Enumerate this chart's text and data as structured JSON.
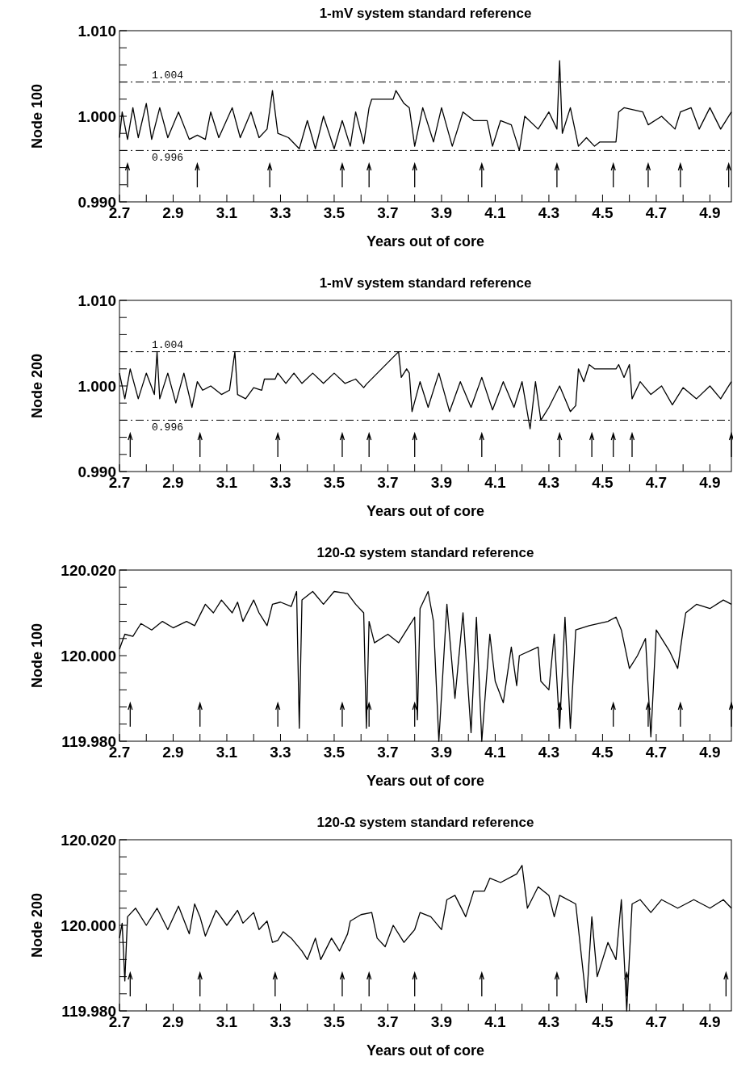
{
  "chart_data": [
    {
      "type": "line",
      "title": "1-mV system standard reference",
      "xlabel": "Years out of core",
      "ylabel": "Node 100",
      "xlim": [
        2.7,
        4.98
      ],
      "xticks": [
        2.7,
        {
          "value": 2.8,
          "label": null
        },
        2.9,
        {
          "value": 3.0,
          "label": null
        },
        3.1,
        {
          "value": 3.2,
          "label": null
        },
        3.3,
        {
          "value": 3.4,
          "label": null
        },
        3.5,
        {
          "value": 3.6,
          "label": null
        },
        3.7,
        {
          "value": 3.8,
          "label": null
        },
        3.9,
        {
          "value": 4.0,
          "label": null
        },
        4.1,
        {
          "value": 4.2,
          "label": null
        },
        4.3,
        {
          "value": 4.4,
          "label": null
        },
        4.5,
        {
          "value": 4.6,
          "label": null
        },
        4.7,
        {
          "value": 4.8,
          "label": null
        },
        4.9
      ],
      "ylim": [
        0.99,
        1.01
      ],
      "yticks": [
        {
          "value": 0.99,
          "label": "0.990"
        },
        {
          "value": 0.992,
          "label": null
        },
        {
          "value": 0.994,
          "label": null
        },
        {
          "value": 0.996,
          "label": null
        },
        {
          "value": 0.998,
          "label": null
        },
        {
          "value": 1.0,
          "label": "1.000"
        },
        {
          "value": 1.002,
          "label": null
        },
        {
          "value": 1.004,
          "label": null
        },
        {
          "value": 1.006,
          "label": null
        },
        {
          "value": 1.008,
          "label": null
        },
        {
          "value": 1.01,
          "label": "1.010"
        }
      ],
      "ref_lines": [
        {
          "axis": "y",
          "value": 1.004,
          "label": "1.004",
          "line_style": "dashed"
        },
        {
          "axis": "y",
          "value": 0.996,
          "label": "0.996",
          "line_style": "dashed"
        },
        {
          "axis": "x",
          "value": 2.73
        },
        {
          "axis": "x",
          "value": 2.99
        },
        {
          "axis": "x",
          "value": 3.26
        },
        {
          "axis": "x",
          "value": 3.53
        },
        {
          "axis": "x",
          "value": 3.63
        },
        {
          "axis": "x",
          "value": 3.8
        },
        {
          "axis": "x",
          "value": 4.05
        },
        {
          "axis": "x",
          "value": 4.33
        },
        {
          "axis": "x",
          "value": 4.54
        },
        {
          "axis": "x",
          "value": 4.67
        },
        {
          "axis": "x",
          "value": 4.79
        },
        {
          "axis": "x",
          "value": 4.97
        }
      ],
      "series": [
        {
          "color": "#000000",
          "x": [
            2.7,
            2.71,
            2.73,
            2.75,
            2.77,
            2.8,
            2.82,
            2.85,
            2.88,
            2.92,
            2.96,
            2.99,
            3.02,
            3.04,
            3.07,
            3.12,
            3.15,
            3.19,
            3.22,
            3.25,
            3.27,
            3.29,
            3.33,
            3.37,
            3.4,
            3.43,
            3.46,
            3.5,
            3.53,
            3.56,
            3.58,
            3.61,
            3.63,
            3.64,
            3.72,
            3.73,
            3.76,
            3.78,
            3.8,
            3.83,
            3.87,
            3.9,
            3.94,
            3.98,
            4.02,
            4.07,
            4.09,
            4.12,
            4.16,
            4.19,
            4.21,
            4.26,
            4.3,
            4.33,
            4.34,
            4.35,
            4.38,
            4.41,
            4.44,
            4.47,
            4.49,
            4.55,
            4.56,
            4.58,
            4.65,
            4.67,
            4.72,
            4.77,
            4.79,
            4.83,
            4.86,
            4.9,
            4.94,
            4.98
          ],
          "values": [
            0.9975,
            1.0005,
            0.9973,
            1.001,
            0.9975,
            1.0015,
            0.9973,
            1.001,
            0.9975,
            1.0005,
            0.9973,
            0.9978,
            0.9973,
            1.0005,
            0.9975,
            1.001,
            0.9975,
            1.0005,
            0.9975,
            0.9985,
            1.003,
            0.998,
            0.9975,
            0.9962,
            0.9995,
            0.9962,
            1.0,
            0.9962,
            0.9995,
            0.9965,
            1.0005,
            0.9968,
            1.001,
            1.002,
            1.002,
            1.003,
            1.0015,
            1.001,
            0.9965,
            1.001,
            0.997,
            1.001,
            0.9965,
            1.0005,
            0.9995,
            0.9995,
            0.9965,
            0.9995,
            0.999,
            0.996,
            1.0,
            0.9985,
            1.0005,
            0.9985,
            1.0065,
            0.998,
            1.001,
            0.9965,
            0.9975,
            0.9965,
            0.997,
            0.997,
            1.0005,
            1.001,
            1.0005,
            0.999,
            1.0,
            0.9985,
            1.0005,
            1.001,
            0.9985,
            1.001,
            0.9985,
            1.0005
          ]
        }
      ]
    },
    {
      "type": "line",
      "title": "1-mV system standard reference",
      "xlabel": "Years out of core",
      "ylabel": "Node 200",
      "xlim": [
        2.7,
        4.98
      ],
      "xticks": [
        2.7,
        {
          "value": 2.8,
          "label": null
        },
        2.9,
        {
          "value": 3.0,
          "label": null
        },
        3.1,
        {
          "value": 3.2,
          "label": null
        },
        3.3,
        {
          "value": 3.4,
          "label": null
        },
        3.5,
        {
          "value": 3.6,
          "label": null
        },
        3.7,
        {
          "value": 3.8,
          "label": null
        },
        3.9,
        {
          "value": 4.0,
          "label": null
        },
        4.1,
        {
          "value": 4.2,
          "label": null
        },
        4.3,
        {
          "value": 4.4,
          "label": null
        },
        4.5,
        {
          "value": 4.6,
          "label": null
        },
        4.7,
        {
          "value": 4.8,
          "label": null
        },
        4.9
      ],
      "ylim": [
        0.99,
        1.01
      ],
      "yticks": [
        {
          "value": 0.99,
          "label": "0.990"
        },
        {
          "value": 0.992,
          "label": null
        },
        {
          "value": 0.994,
          "label": null
        },
        {
          "value": 0.996,
          "label": null
        },
        {
          "value": 0.998,
          "label": null
        },
        {
          "value": 1.0,
          "label": "1.000"
        },
        {
          "value": 1.002,
          "label": null
        },
        {
          "value": 1.004,
          "label": null
        },
        {
          "value": 1.006,
          "label": null
        },
        {
          "value": 1.008,
          "label": null
        },
        {
          "value": 1.01,
          "label": "1.010"
        }
      ],
      "ref_lines": [
        {
          "axis": "y",
          "value": 1.004,
          "label": "1.004",
          "line_style": "dashed"
        },
        {
          "axis": "y",
          "value": 0.996,
          "label": "0.996",
          "line_style": "dashed"
        },
        {
          "axis": "x",
          "value": 2.74
        },
        {
          "axis": "x",
          "value": 3.0
        },
        {
          "axis": "x",
          "value": 3.29
        },
        {
          "axis": "x",
          "value": 3.53
        },
        {
          "axis": "x",
          "value": 3.63
        },
        {
          "axis": "x",
          "value": 3.8
        },
        {
          "axis": "x",
          "value": 4.05
        },
        {
          "axis": "x",
          "value": 4.34
        },
        {
          "axis": "x",
          "value": 4.46
        },
        {
          "axis": "x",
          "value": 4.54
        },
        {
          "axis": "x",
          "value": 4.61
        },
        {
          "axis": "x",
          "value": 4.98
        }
      ],
      "series": [
        {
          "color": "#000000",
          "x": [
            2.7,
            2.72,
            2.74,
            2.77,
            2.8,
            2.83,
            2.84,
            2.85,
            2.88,
            2.91,
            2.94,
            2.97,
            2.99,
            3.01,
            3.04,
            3.08,
            3.11,
            3.13,
            3.14,
            3.17,
            3.2,
            3.23,
            3.24,
            3.28,
            3.29,
            3.32,
            3.35,
            3.38,
            3.42,
            3.46,
            3.5,
            3.54,
            3.58,
            3.61,
            3.62,
            3.74,
            3.75,
            3.77,
            3.78,
            3.79,
            3.82,
            3.85,
            3.89,
            3.93,
            3.97,
            4.01,
            4.05,
            4.09,
            4.13,
            4.17,
            4.2,
            4.23,
            4.25,
            4.27,
            4.3,
            4.34,
            4.38,
            4.4,
            4.41,
            4.43,
            4.45,
            4.47,
            4.55,
            4.56,
            4.58,
            4.6,
            4.61,
            4.64,
            4.68,
            4.72,
            4.76,
            4.8,
            4.85,
            4.9,
            4.94,
            4.98
          ],
          "values": [
            1.0015,
            0.9985,
            1.002,
            0.9985,
            1.0015,
            0.999,
            1.004,
            0.9985,
            1.0015,
            0.998,
            1.0015,
            0.9975,
            1.0005,
            0.9995,
            1.0,
            0.999,
            0.9995,
            1.004,
            0.999,
            0.9985,
            0.9998,
            0.9995,
            1.0008,
            1.0008,
            1.0015,
            1.0003,
            1.0015,
            1.0003,
            1.0015,
            1.0003,
            1.0015,
            1.0003,
            1.0008,
            0.9998,
            1.0002,
            1.004,
            1.001,
            1.002,
            1.0015,
            0.997,
            1.0005,
            0.9975,
            1.0015,
            0.997,
            1.0005,
            0.9975,
            1.001,
            0.9972,
            1.0005,
            0.9975,
            1.0005,
            0.995,
            1.0005,
            0.996,
            0.9975,
            1.0,
            0.997,
            0.9977,
            1.002,
            1.0005,
            1.0025,
            1.002,
            1.002,
            1.0025,
            1.001,
            1.0025,
            0.9985,
            1.0005,
            0.999,
            1.0,
            0.9978,
            0.9998,
            0.9985,
            1.0,
            0.9985,
            1.0005
          ]
        }
      ]
    },
    {
      "type": "line",
      "title": "120-Ω system standard reference",
      "xlabel": "Years out of core",
      "ylabel": "Node 100",
      "xlim": [
        2.7,
        4.98
      ],
      "xticks": [
        2.7,
        {
          "value": 2.8,
          "label": null
        },
        2.9,
        {
          "value": 3.0,
          "label": null
        },
        3.1,
        {
          "value": 3.2,
          "label": null
        },
        3.3,
        {
          "value": 3.4,
          "label": null
        },
        3.5,
        {
          "value": 3.6,
          "label": null
        },
        3.7,
        {
          "value": 3.8,
          "label": null
        },
        3.9,
        {
          "value": 4.0,
          "label": null
        },
        4.1,
        {
          "value": 4.2,
          "label": null
        },
        4.3,
        {
          "value": 4.4,
          "label": null
        },
        4.5,
        {
          "value": 4.6,
          "label": null
        },
        4.7,
        {
          "value": 4.8,
          "label": null
        },
        4.9
      ],
      "ylim": [
        119.98,
        120.02
      ],
      "yticks": [
        {
          "value": 119.98,
          "label": "119.980"
        },
        {
          "value": 119.984,
          "label": null
        },
        {
          "value": 119.988,
          "label": null
        },
        {
          "value": 119.992,
          "label": null
        },
        {
          "value": 119.996,
          "label": null
        },
        {
          "value": 120.0,
          "label": "120.000"
        },
        {
          "value": 120.004,
          "label": null
        },
        {
          "value": 120.008,
          "label": null
        },
        {
          "value": 120.012,
          "label": null
        },
        {
          "value": 120.016,
          "label": null
        },
        {
          "value": 120.02,
          "label": "120.020"
        }
      ],
      "ref_lines": [
        {
          "axis": "x",
          "value": 2.74
        },
        {
          "axis": "x",
          "value": 3.0
        },
        {
          "axis": "x",
          "value": 3.29
        },
        {
          "axis": "x",
          "value": 3.53
        },
        {
          "axis": "x",
          "value": 3.63
        },
        {
          "axis": "x",
          "value": 3.8
        },
        {
          "axis": "x",
          "value": 4.34
        },
        {
          "axis": "x",
          "value": 4.54
        },
        {
          "axis": "x",
          "value": 4.67
        },
        {
          "axis": "x",
          "value": 4.79
        },
        {
          "axis": "x",
          "value": 4.98
        }
      ],
      "series": [
        {
          "color": "#000000",
          "x": [
            2.7,
            2.72,
            2.75,
            2.78,
            2.82,
            2.86,
            2.9,
            2.95,
            2.98,
            3.0,
            3.02,
            3.05,
            3.08,
            3.12,
            3.14,
            3.16,
            3.2,
            3.22,
            3.25,
            3.27,
            3.3,
            3.34,
            3.36,
            3.37,
            3.38,
            3.42,
            3.46,
            3.5,
            3.55,
            3.58,
            3.61,
            3.62,
            3.63,
            3.65,
            3.7,
            3.74,
            3.78,
            3.8,
            3.81,
            3.82,
            3.85,
            3.87,
            3.89,
            3.92,
            3.95,
            3.98,
            4.01,
            4.03,
            4.05,
            4.08,
            4.1,
            4.13,
            4.16,
            4.18,
            4.19,
            4.26,
            4.27,
            4.3,
            4.32,
            4.34,
            4.36,
            4.38,
            4.4,
            4.45,
            4.52,
            4.55,
            4.57,
            4.6,
            4.63,
            4.66,
            4.68,
            4.7,
            4.75,
            4.78,
            4.8,
            4.81,
            4.85,
            4.9,
            4.95,
            4.98
          ],
          "values": [
            120.0015,
            120.005,
            120.0045,
            120.0075,
            120.006,
            120.008,
            120.0065,
            120.008,
            120.007,
            120.0095,
            120.012,
            120.01,
            120.013,
            120.01,
            120.0125,
            120.008,
            120.013,
            120.01,
            120.007,
            120.012,
            120.0125,
            120.0115,
            120.015,
            119.983,
            120.013,
            120.015,
            120.012,
            120.015,
            120.0145,
            120.012,
            120.01,
            119.983,
            120.008,
            120.003,
            120.005,
            120.003,
            120.007,
            120.009,
            119.985,
            120.011,
            120.015,
            120.008,
            119.98,
            120.012,
            119.99,
            120.01,
            119.982,
            120.009,
            119.98,
            120.005,
            119.994,
            119.989,
            120.002,
            119.993,
            120.0,
            120.002,
            119.994,
            119.992,
            120.005,
            119.983,
            120.009,
            119.983,
            120.006,
            120.007,
            120.008,
            120.009,
            120.006,
            119.997,
            120.0,
            120.004,
            119.981,
            120.006,
            120.001,
            119.997,
            120.006,
            120.01,
            120.012,
            120.011,
            120.013,
            120.012
          ]
        }
      ]
    },
    {
      "type": "line",
      "title": "120-Ω system standard reference",
      "xlabel": "Years out of core",
      "ylabel": "Node 200",
      "xlim": [
        2.7,
        4.98
      ],
      "xticks": [
        2.7,
        {
          "value": 2.8,
          "label": null
        },
        2.9,
        {
          "value": 3.0,
          "label": null
        },
        3.1,
        {
          "value": 3.2,
          "label": null
        },
        3.3,
        {
          "value": 3.4,
          "label": null
        },
        3.5,
        {
          "value": 3.6,
          "label": null
        },
        3.7,
        {
          "value": 3.8,
          "label": null
        },
        3.9,
        {
          "value": 4.0,
          "label": null
        },
        4.1,
        {
          "value": 4.2,
          "label": null
        },
        4.3,
        {
          "value": 4.4,
          "label": null
        },
        4.5,
        {
          "value": 4.6,
          "label": null
        },
        4.7,
        {
          "value": 4.8,
          "label": null
        },
        4.9
      ],
      "ylim": [
        119.98,
        120.02
      ],
      "yticks": [
        {
          "value": 119.98,
          "label": "119.980"
        },
        {
          "value": 119.984,
          "label": null
        },
        {
          "value": 119.988,
          "label": null
        },
        {
          "value": 119.992,
          "label": null
        },
        {
          "value": 119.996,
          "label": null
        },
        {
          "value": 120.0,
          "label": "120.000"
        },
        {
          "value": 120.004,
          "label": null
        },
        {
          "value": 120.008,
          "label": null
        },
        {
          "value": 120.012,
          "label": null
        },
        {
          "value": 120.016,
          "label": null
        },
        {
          "value": 120.02,
          "label": "120.020"
        }
      ],
      "ref_lines": [
        {
          "axis": "x",
          "value": 2.74
        },
        {
          "axis": "x",
          "value": 3.0
        },
        {
          "axis": "x",
          "value": 3.28
        },
        {
          "axis": "x",
          "value": 3.53
        },
        {
          "axis": "x",
          "value": 3.63
        },
        {
          "axis": "x",
          "value": 3.8
        },
        {
          "axis": "x",
          "value": 4.05
        },
        {
          "axis": "x",
          "value": 4.33
        },
        {
          "axis": "x",
          "value": 4.59
        },
        {
          "axis": "x",
          "value": 4.96
        }
      ],
      "series": [
        {
          "color": "#000000",
          "x": [
            2.7,
            2.71,
            2.72,
            2.73,
            2.76,
            2.8,
            2.84,
            2.88,
            2.92,
            2.96,
            2.98,
            3.0,
            3.02,
            3.06,
            3.1,
            3.14,
            3.16,
            3.2,
            3.22,
            3.25,
            3.27,
            3.29,
            3.31,
            3.34,
            3.38,
            3.4,
            3.43,
            3.45,
            3.49,
            3.52,
            3.55,
            3.56,
            3.6,
            3.64,
            3.66,
            3.69,
            3.72,
            3.76,
            3.8,
            3.82,
            3.86,
            3.9,
            3.92,
            3.95,
            3.99,
            4.02,
            4.06,
            4.08,
            4.12,
            4.18,
            4.2,
            4.22,
            4.26,
            4.3,
            4.32,
            4.34,
            4.4,
            4.44,
            4.46,
            4.48,
            4.52,
            4.55,
            4.57,
            4.59,
            4.61,
            4.64,
            4.68,
            4.72,
            4.78,
            4.84,
            4.9,
            4.95,
            4.98
          ],
          "values": [
            119.997,
            120.0005,
            119.987,
            120.002,
            120.004,
            120.0,
            120.004,
            119.999,
            120.0045,
            119.998,
            120.005,
            120.002,
            119.9975,
            120.0035,
            120.0,
            120.0035,
            120.0005,
            120.003,
            119.999,
            120.001,
            119.996,
            119.9965,
            119.9985,
            119.997,
            119.994,
            119.992,
            119.997,
            119.992,
            119.997,
            119.994,
            119.998,
            120.001,
            120.0025,
            120.003,
            119.997,
            119.995,
            120.0,
            119.996,
            119.999,
            120.003,
            120.002,
            119.999,
            120.006,
            120.007,
            120.002,
            120.008,
            120.008,
            120.011,
            120.01,
            120.012,
            120.014,
            120.004,
            120.009,
            120.007,
            120.002,
            120.007,
            120.005,
            119.982,
            120.002,
            119.988,
            119.996,
            119.992,
            120.006,
            119.98,
            120.005,
            120.006,
            120.003,
            120.006,
            120.004,
            120.006,
            120.004,
            120.006,
            120.004
          ]
        }
      ]
    }
  ]
}
